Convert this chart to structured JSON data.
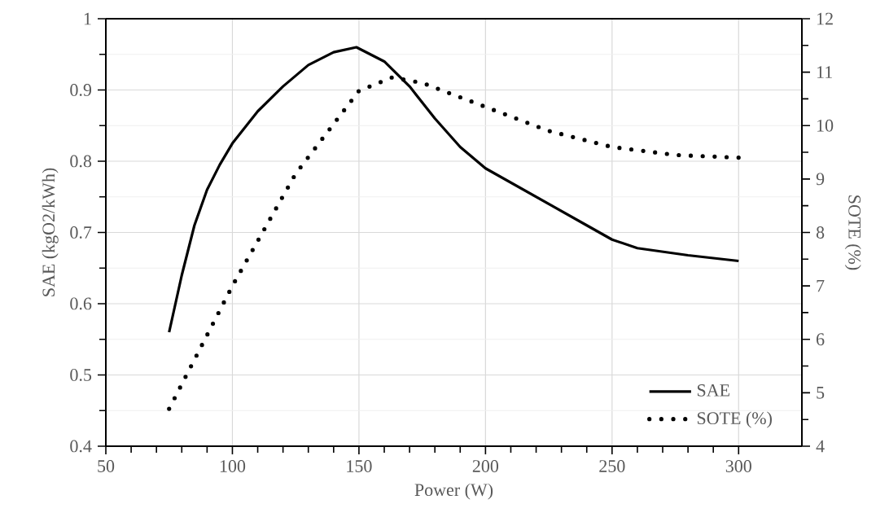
{
  "chart_data": {
    "type": "line",
    "xlabel": "Power (W)",
    "ylabel": "SAE (kgO2/kWh)",
    "y2label": "SOTE (%)",
    "xlim": [
      50,
      325
    ],
    "xticks": [
      50,
      100,
      150,
      200,
      250,
      300
    ],
    "ylim": [
      0.4,
      1
    ],
    "yticks": [
      0.4,
      0.5,
      0.6,
      0.7,
      0.8,
      0.9,
      1
    ],
    "y2lim": [
      4,
      12
    ],
    "y2ticks": [
      4,
      5,
      6,
      7,
      8,
      9,
      10,
      11,
      12
    ],
    "grid": true,
    "legend": "bottom right",
    "series": [
      {
        "name": "SAE",
        "color": "#000000",
        "line_style": "solid",
        "x": [
          75,
          80,
          85,
          90,
          95,
          100,
          110,
          120,
          130,
          140,
          149,
          160,
          170,
          180,
          190,
          200,
          220,
          240,
          250,
          260,
          280,
          300
        ],
        "values": [
          0.56,
          0.64,
          0.71,
          0.76,
          0.795,
          0.825,
          0.87,
          0.905,
          0.935,
          0.953,
          0.96,
          0.94,
          0.905,
          0.86,
          0.82,
          0.79,
          0.75,
          0.71,
          0.69,
          0.678,
          0.668,
          0.66
        ]
      },
      {
        "name": "SOTE (%)",
        "color": "#000000",
        "line_style": "dotted",
        "axis": "y2",
        "x": [
          75,
          100,
          125,
          150,
          163,
          175,
          200,
          225,
          250,
          275,
          300
        ],
        "values": [
          4.7,
          7.0,
          9.1,
          10.65,
          10.9,
          10.8,
          10.35,
          9.9,
          9.6,
          9.45,
          9.4
        ]
      }
    ]
  }
}
